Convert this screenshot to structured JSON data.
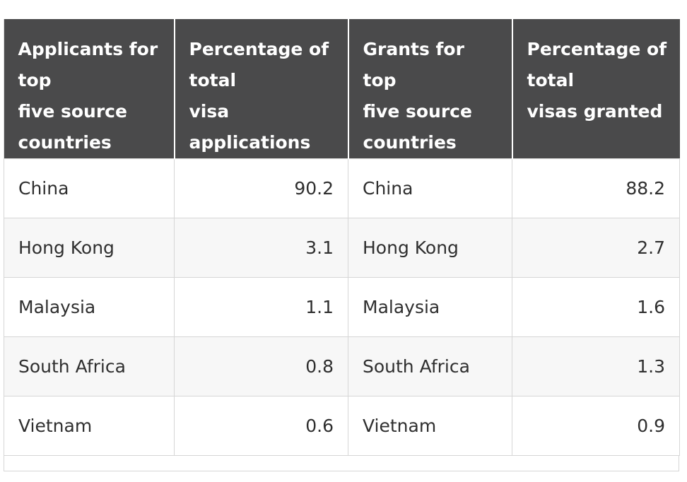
{
  "table": {
    "headers": [
      [
        "Applicants for",
        "top",
        "five source",
        "countries"
      ],
      [
        "Percentage of",
        "total",
        "visa",
        "applications"
      ],
      [
        "Grants for",
        "top",
        "five source",
        "countries"
      ],
      [
        "Percentage of",
        "total",
        "visas granted"
      ]
    ],
    "rows": [
      {
        "applicant_country": "China",
        "applications_pct": "90.2",
        "grant_country": "China",
        "granted_pct": "88.2"
      },
      {
        "applicant_country": "Hong Kong",
        "applications_pct": "3.1",
        "grant_country": "Hong Kong",
        "granted_pct": "2.7"
      },
      {
        "applicant_country": "Malaysia",
        "applications_pct": "1.1",
        "grant_country": "Malaysia",
        "granted_pct": "1.6"
      },
      {
        "applicant_country": "South Africa",
        "applications_pct": "0.8",
        "grant_country": "South Africa",
        "granted_pct": "1.3"
      },
      {
        "applicant_country": "Vietnam",
        "applications_pct": "0.6",
        "grant_country": "Vietnam",
        "granted_pct": "0.9"
      }
    ]
  },
  "colors": {
    "header_background": "#4a4a4b",
    "header_text": "#ffffff",
    "body_text": "#2f2f2f",
    "border": "#d6d6d6"
  }
}
